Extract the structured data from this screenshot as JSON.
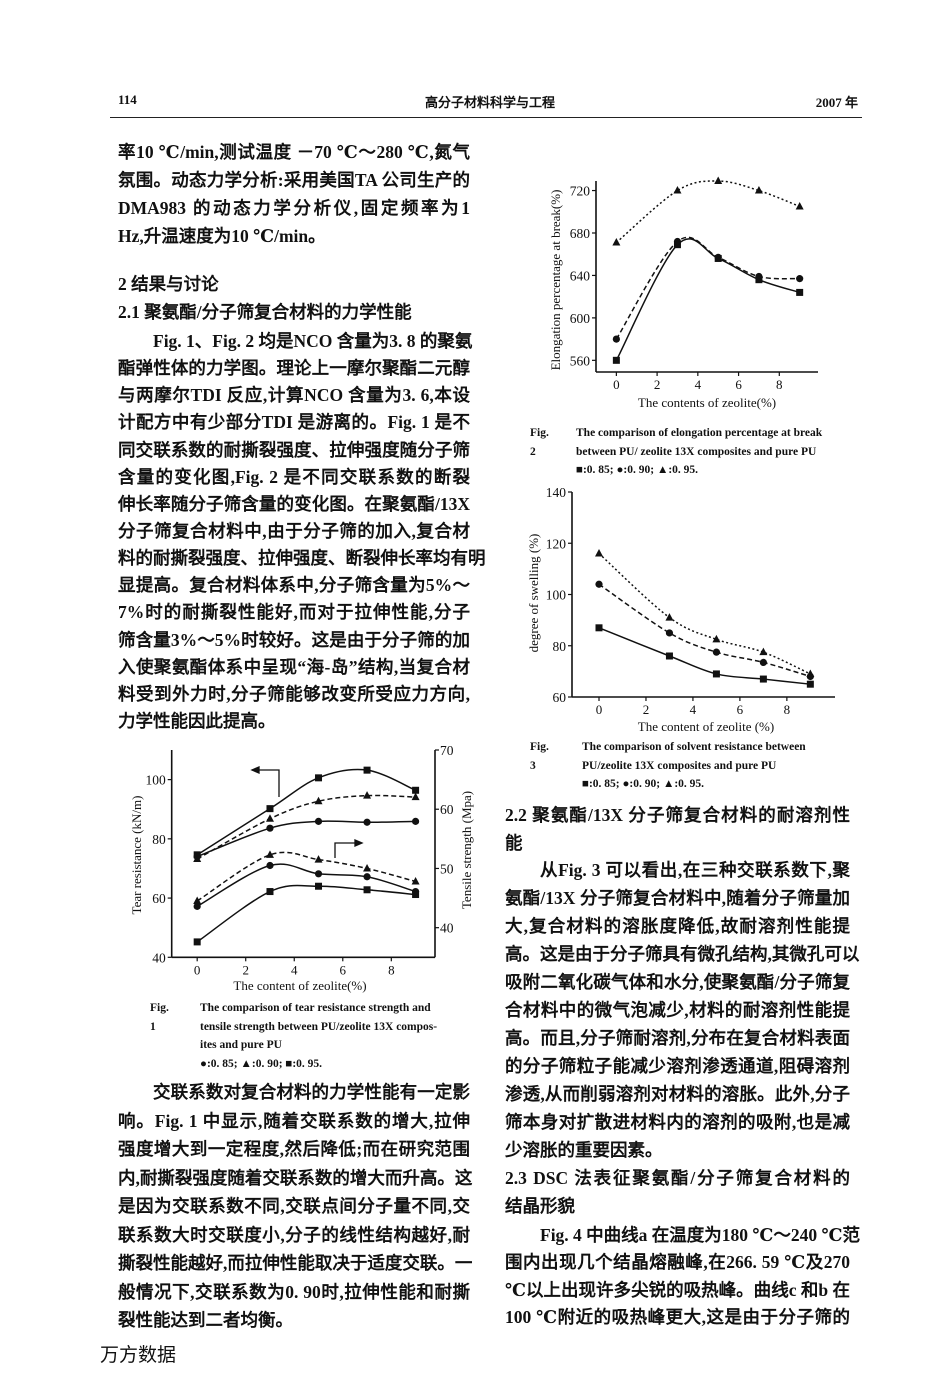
{
  "header": {
    "page_number": "114",
    "journal_title": "高分子材料科学与工程",
    "year": "2007 年"
  },
  "left": {
    "p0": {
      "lines": [
        "率10 ℃/min,测试温度 －70 ℃～280 ℃,氮气",
        "氛围。动态力学分析:采用美国TA 公司生产的",
        "DMA983 的动态力学分析仪,固定频率为1",
        "Hz,升温速度为10 ℃/min。"
      ]
    },
    "headings": {
      "lines": [
        "2  结果与讨论",
        "2.1  聚氨酯/分子筛复合材料的力学性能"
      ]
    },
    "p1": {
      "lines": [
        "Fig. 1、Fig. 2 均是NCO 含量为3. 8 的聚氨",
        "酯弹性体的力学图。理论上一摩尔聚酯二元醇",
        "与两摩尔TDI 反应,计算NCO 含量为3. 6,本设",
        "计配方中有少部分TDI 是游离的。Fig. 1 是不",
        "同交联系数的耐撕裂强度、拉伸强度随分子筛",
        "含量的变化图,Fig. 2 是不同交联系数的断裂",
        "伸长率随分子筛含量的变化图。在聚氨酯/13X",
        "分子筛复合材料中,由于分子筛的加入,复合材",
        "料的耐撕裂强度、拉伸强度、断裂伸长率均有明",
        "显提高。复合材料体系中,分子筛含量为5%～",
        "7%时的耐撕裂性能好,而对于拉伸性能,分子",
        "筛含量3%～5%时较好。这是由于分子筛的加",
        "入使聚氨酯体系中呈现“海-岛”结构,当复合材",
        "料受到外力时,分子筛能够改变所受应力方向,",
        "力学性能因此提高。"
      ]
    },
    "p2": {
      "lines": [
        "交联系数对复合材料的力学性能有一定影",
        "响。Fig. 1 中显示,随着交联系数的增大,拉伸",
        "强度增大到一定程度,然后降低;而在研究范围",
        "内,耐撕裂强度随着交联系数的增大而升高。这",
        "是因为交联系数不同,交联点间分子量不同,交",
        "联系数大时交联度小,分子的线性结构越好,耐",
        "撕裂性能越好,而拉伸性能取决于适度交联。一",
        "般情况下,交联系数为0. 90时,拉伸性能和耐撕",
        "裂性能达到二者均衡。"
      ]
    }
  },
  "right": {
    "h22": {
      "lines": [
        "2.2  聚氨酯/13X 分子筛复合材料的耐溶剂性",
        "能"
      ]
    },
    "p3": {
      "lines": [
        "从Fig. 3 可以看出,在三种交联系数下,聚",
        "氨酯/13X 分子筛复合材料中,随着分子筛量加",
        "大,复合材料的溶胀度降低,故耐溶剂性能提",
        "高。这是由于分子筛具有微孔结构,其微孔可以",
        "吸附二氧化碳气体和水分,使聚氨酯/分子筛复",
        "合材料中的微气泡减少,材料的耐溶剂性能提",
        "高。而且,分子筛耐溶剂,分布在复合材料表面",
        "的分子筛粒子能减少溶剂渗透通道,阻碍溶剂",
        "渗透,从而削弱溶剂对材料的溶胀。此外,分子",
        "筛本身对扩散进材料内的溶剂的吸附,也是减",
        "少溶胀的重要因素。"
      ]
    },
    "h23": {
      "lines": [
        "2.3  DSC 法表征聚氨酯/分子筛复合材料的",
        "结晶形貌"
      ]
    },
    "p4": {
      "lines": [
        "Fig. 4 中曲线a 在温度为180 ℃～240 ℃范",
        "围内出现几个结晶熔融峰,在266. 59 ℃及270",
        "℃以上出现许多尖锐的吸热峰。曲线c 和b 在",
        "100 ℃附近的吸热峰更大,这是由于分子筛的"
      ]
    }
  },
  "captions": {
    "fig1": {
      "label": "Fig. 1",
      "lines": [
        "The comparison of tear resistance strength and",
        "tensile strength between PU/zeolite 13X compos-",
        "ites and pure PU",
        "●:0. 85; ▲:0. 90; ■:0. 95."
      ]
    },
    "fig2": {
      "label": "Fig. 2",
      "lines": [
        "The comparison of elongation percentage at break",
        "between PU/ zeolite 13X composites and pure PU",
        "■:0. 85; ●:0. 90; ▲:0. 95."
      ]
    },
    "fig3": {
      "label": "Fig. 3",
      "lines": [
        "The comparison of solvent resistance between",
        "PU/zeolite 13X composites and pure PU",
        "■:0. 85; ●:0. 90; ▲:0. 95."
      ]
    }
  },
  "watermark": "万方数据",
  "chart_data": [
    {
      "id": "fig1",
      "type": "line",
      "xlabel": "The content of zeolite(%)",
      "ylabel": "Tear resistance (kN/m)",
      "y2label": "Tensile strength (Mpa)",
      "xlim": [
        -1.05,
        9.8
      ],
      "ylim": [
        40,
        110
      ],
      "y2lim": [
        35,
        70
      ],
      "xticks": [
        0,
        2,
        4,
        6,
        8
      ],
      "yticks": [
        40,
        60,
        80,
        100
      ],
      "y2ticks": [
        40,
        50,
        60,
        70
      ],
      "x": [
        0,
        3,
        5,
        7,
        9
      ],
      "grid": false,
      "series": [
        {
          "name": "0.95",
          "axis": "left",
          "marker": "square",
          "line": "solid",
          "values": [
            74.6,
            90.2,
            100.6,
            103.2,
            96.4
          ]
        },
        {
          "name": "0.90",
          "axis": "left",
          "marker": "triangle",
          "line": "dashed",
          "values": [
            73.2,
            86.8,
            92.7,
            94.6,
            94.1
          ]
        },
        {
          "name": "0.85",
          "axis": "left",
          "marker": "circle",
          "line": "solid",
          "values": [
            74.0,
            83.6,
            85.9,
            85.6,
            85.9
          ]
        },
        {
          "name": "0.90",
          "axis": "right",
          "marker": "triangle",
          "line": "dashed",
          "values": [
            44.5,
            52.3,
            51.5,
            50.0,
            47.8
          ]
        },
        {
          "name": "0.85",
          "axis": "right",
          "marker": "circle",
          "line": "solid",
          "values": [
            43.6,
            50.5,
            49.1,
            48.6,
            46.1
          ]
        },
        {
          "name": "0.95",
          "axis": "right",
          "marker": "square",
          "line": "solid",
          "values": [
            37.6,
            46.1,
            47.0,
            46.4,
            45.6
          ]
        }
      ]
    },
    {
      "id": "fig2",
      "type": "line",
      "xlabel": "The contents of zeolite(%)",
      "ylabel": "Elongation percentage at break(%)",
      "xlim": [
        -1,
        9.9
      ],
      "ylim": [
        549,
        729
      ],
      "xticks": [
        0,
        2,
        4,
        6,
        8
      ],
      "yticks": [
        560,
        600,
        640,
        680,
        720
      ],
      "x": [
        0,
        3,
        5,
        7,
        9
      ],
      "grid": false,
      "series": [
        {
          "name": "0.85",
          "marker": "square",
          "line": "solid",
          "values": [
            560,
            669,
            656,
            636,
            624
          ]
        },
        {
          "name": "0.90",
          "marker": "circle",
          "line": "dashed",
          "values": [
            580,
            672,
            657,
            639,
            637
          ]
        },
        {
          "name": "0.95",
          "marker": "triangle",
          "line": "dotted",
          "values": [
            671,
            720,
            729,
            720,
            705
          ]
        }
      ]
    },
    {
      "id": "fig3",
      "type": "line",
      "xlabel": "The content of zeolite (%)",
      "ylabel": "degree of swelling (%)",
      "xlim": [
        -1.15,
        10.05
      ],
      "ylim": [
        60,
        140
      ],
      "xticks": [
        0,
        2,
        4,
        6,
        8
      ],
      "yticks": [
        60,
        80,
        100,
        120,
        140
      ],
      "x": [
        0,
        3,
        5,
        7,
        9
      ],
      "grid": false,
      "series": [
        {
          "name": "0.85",
          "marker": "square",
          "line": "solid",
          "values": [
            87,
            76,
            69,
            67,
            65
          ]
        },
        {
          "name": "0.90",
          "marker": "circle",
          "line": "dashed",
          "values": [
            104,
            85,
            77.5,
            73.5,
            68
          ]
        },
        {
          "name": "0.95",
          "marker": "triangle",
          "line": "dotted",
          "values": [
            116,
            91,
            82.5,
            77.5,
            69
          ]
        }
      ]
    }
  ]
}
